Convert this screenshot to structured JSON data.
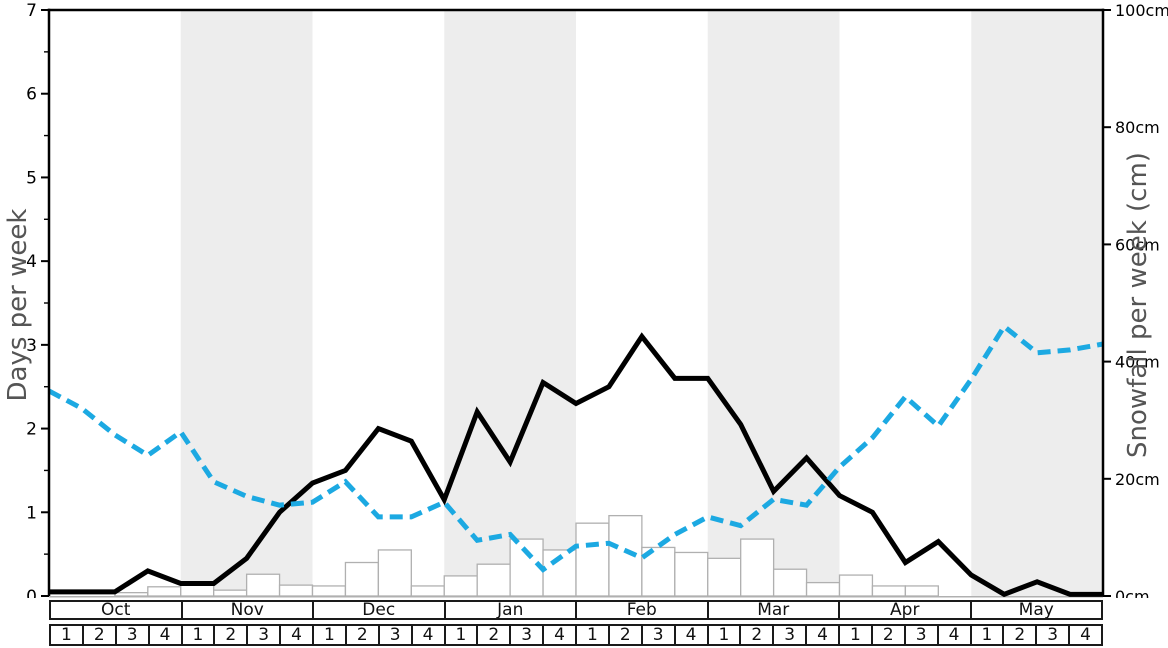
{
  "chart_data": {
    "type": "combo",
    "months": [
      "Oct",
      "Nov",
      "Dec",
      "Jan",
      "Feb",
      "Mar",
      "Apr",
      "May"
    ],
    "weeks_per_month": [
      "1",
      "2",
      "3",
      "4"
    ],
    "shaded_month_indices": [
      1,
      3,
      5,
      7
    ],
    "band_color": "#ededed",
    "left_axis": {
      "label": "Days per week",
      "min": 0,
      "max": 7,
      "tick_values": [
        0,
        1,
        2,
        3,
        4,
        5,
        6,
        7
      ],
      "tick_labels": [
        "0",
        "1",
        "2",
        "3",
        "4",
        "5",
        "6",
        "7"
      ],
      "minor_tick_step": 0.5
    },
    "right_axis": {
      "label": "Snowfall per week (cm)",
      "min": 0,
      "max": 100,
      "tick_values": [
        0,
        20,
        40,
        60,
        80,
        100
      ],
      "tick_labels": [
        "0cm",
        "20cm",
        "40cm",
        "60cm",
        "80cm",
        "100cm"
      ]
    },
    "series": [
      {
        "name": "days-with-snowfall-line",
        "type": "line",
        "axis": "left",
        "color": "#000000",
        "style": "solid",
        "stroke_width": 5,
        "values": [
          0.05,
          0.05,
          0.05,
          0.3,
          0.15,
          0.15,
          0.45,
          1.0,
          1.35,
          1.5,
          2.0,
          1.85,
          1.15,
          2.2,
          1.6,
          2.55,
          2.3,
          2.5,
          3.1,
          2.6,
          2.6,
          2.05,
          1.25,
          1.65,
          1.2,
          1.0,
          0.4,
          0.65,
          0.25,
          0.02,
          0.17,
          0.02,
          0.02
        ]
      },
      {
        "name": "snowfall-per-week-line",
        "type": "line",
        "axis": "right",
        "color": "#1ca9e2",
        "style": "dashed",
        "stroke_width": 5,
        "dash": "13 7",
        "values": [
          35,
          32,
          27.5,
          24,
          28,
          19.5,
          17,
          15.5,
          16,
          19.5,
          13.5,
          13.5,
          16,
          9.5,
          10.5,
          4.5,
          8.5,
          9,
          6.5,
          10.5,
          13.5,
          12,
          16.5,
          15.5,
          22,
          27,
          34,
          29,
          37,
          46,
          41.5,
          42,
          43
        ]
      },
      {
        "name": "weekly-bars",
        "type": "bar",
        "axis": "left",
        "fill": "#ffffff",
        "stroke": "#b0b0b0",
        "values": [
          0,
          0,
          0.04,
          0.11,
          0.14,
          0.07,
          0.26,
          0.13,
          0.12,
          0.4,
          0.55,
          0.12,
          0.24,
          0.38,
          0.68,
          0.55,
          0.87,
          0.96,
          0.58,
          0.52,
          0.45,
          0.68,
          0.32,
          0.16,
          0.25,
          0.12,
          0.12,
          0,
          0,
          0,
          0,
          0
        ]
      }
    ],
    "frame_color": "#000000",
    "bottom_axis_color": "#b0b0b0"
  }
}
